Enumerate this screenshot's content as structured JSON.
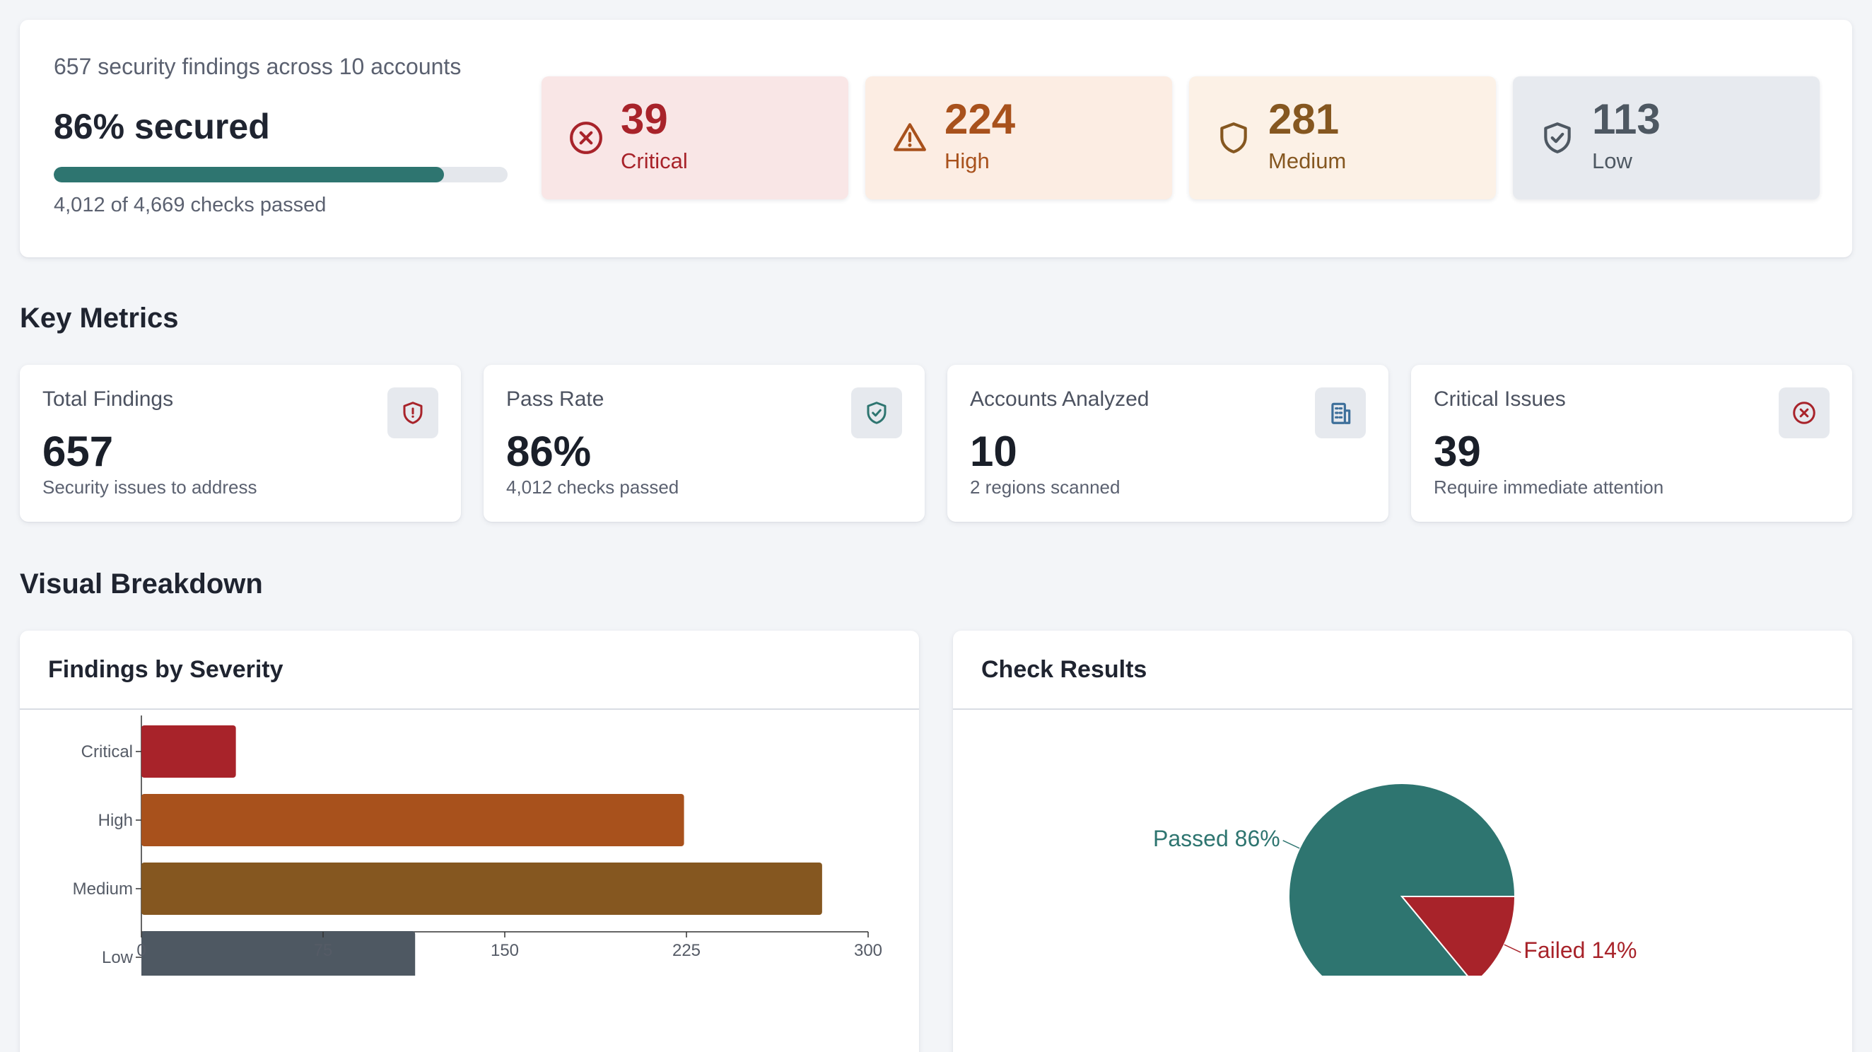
{
  "summary": {
    "subtitle": "657 security findings across 10 accounts",
    "title": "86% secured",
    "progress_fraction": 0.86,
    "checks_text": "4,012 of 4,669 checks passed"
  },
  "severity_tiles": [
    {
      "id": "critical",
      "count": "39",
      "label": "Critical",
      "icon": "x-circle-icon",
      "color": "#a8232a"
    },
    {
      "id": "high",
      "count": "224",
      "label": "High",
      "icon": "warning-triangle-icon",
      "color": "#a8511c"
    },
    {
      "id": "medium",
      "count": "281",
      "label": "Medium",
      "icon": "shield-icon",
      "color": "#855720"
    },
    {
      "id": "low",
      "count": "113",
      "label": "Low",
      "icon": "shield-check-icon",
      "color": "#4e5862"
    }
  ],
  "sections": {
    "key_metrics": "Key Metrics",
    "visual_breakdown": "Visual Breakdown"
  },
  "metrics": [
    {
      "label": "Total Findings",
      "value": "657",
      "caption": "Security issues to address",
      "icon": "shield-alert-icon",
      "icon_color": "#a8232a"
    },
    {
      "label": "Pass Rate",
      "value": "86%",
      "caption": "4,012 checks passed",
      "icon": "shield-check-icon",
      "icon_color": "#2e7570"
    },
    {
      "label": "Accounts Analyzed",
      "value": "10",
      "caption": "2 regions scanned",
      "icon": "building-icon",
      "icon_color": "#3d6f9a"
    },
    {
      "label": "Critical Issues",
      "value": "39",
      "caption": "Require immediate attention",
      "icon": "x-circle-icon",
      "icon_color": "#a8232a"
    }
  ],
  "charts": {
    "severity_title": "Findings by Severity",
    "checks_title": "Check Results"
  },
  "chart_data": [
    {
      "type": "bar",
      "orientation": "horizontal",
      "title": "Findings by Severity",
      "categories": [
        "Critical",
        "High",
        "Medium",
        "Low"
      ],
      "values": [
        39,
        224,
        281,
        113
      ],
      "colors": [
        "#a8232a",
        "#a8511c",
        "#855720",
        "#4e5862"
      ],
      "xlim": [
        0,
        300
      ],
      "xticks": [
        0,
        75,
        150,
        225,
        300
      ],
      "grid": false
    },
    {
      "type": "pie",
      "title": "Check Results",
      "slices": [
        {
          "name": "Passed",
          "value": 86,
          "label": "Passed 86%",
          "color": "#2e7570"
        },
        {
          "name": "Failed",
          "value": 14,
          "label": "Failed 14%",
          "color": "#a8232a"
        }
      ]
    }
  ]
}
